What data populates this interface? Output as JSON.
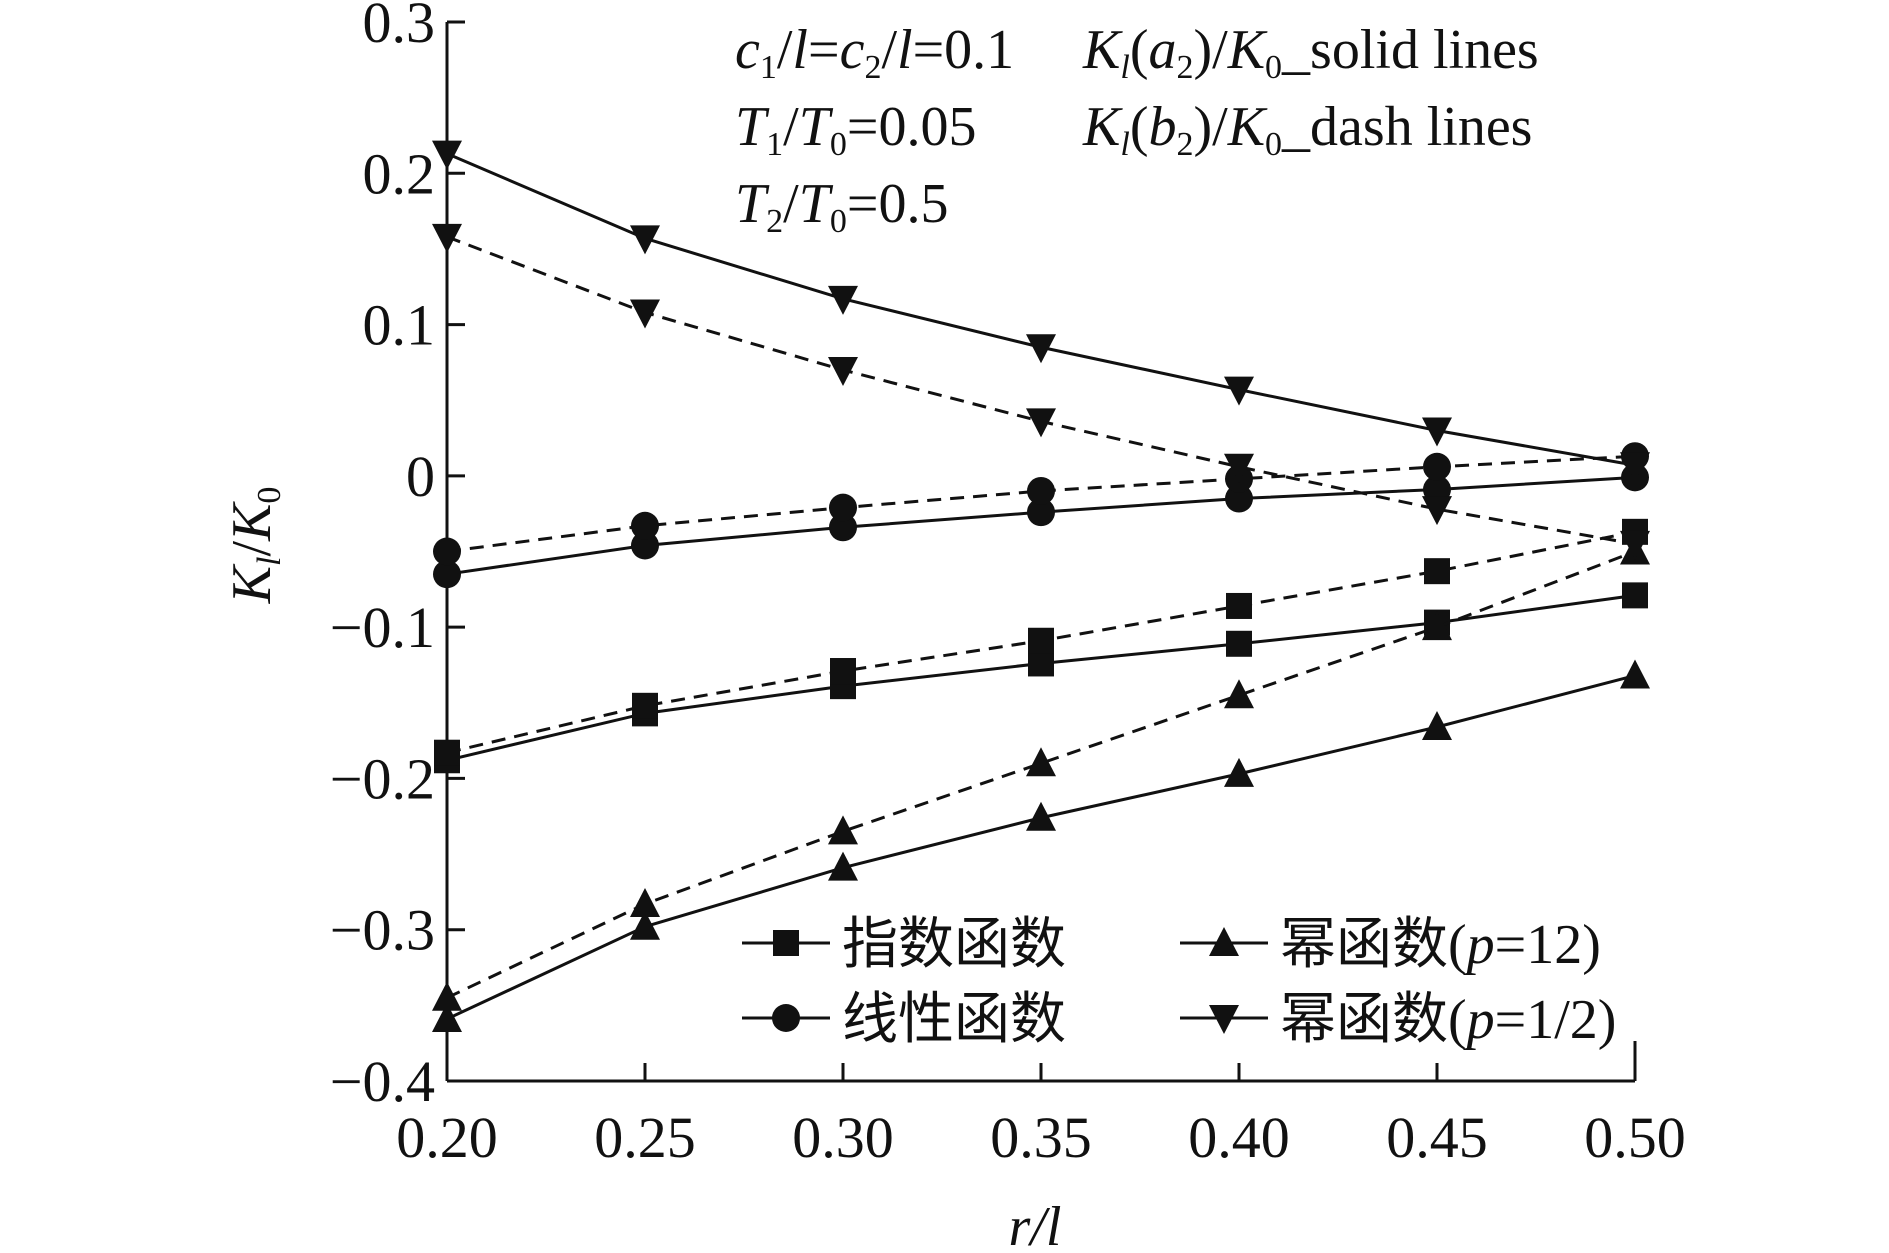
{
  "chart_data": {
    "type": "line",
    "title": "",
    "xlabel": "r/l",
    "ylabel": "K_l/K_0",
    "xlim": [
      0.2,
      0.5
    ],
    "ylim": [
      -0.4,
      0.3
    ],
    "x": [
      0.2,
      0.25,
      0.3,
      0.35,
      0.4,
      0.45,
      0.5
    ],
    "xticks": [
      "0.20",
      "0.25",
      "0.30",
      "0.35",
      "0.40",
      "0.45",
      "0.50"
    ],
    "yticks": [
      {
        "v": 0.3,
        "label": "0.3"
      },
      {
        "v": 0.2,
        "label": "0.2"
      },
      {
        "v": 0.1,
        "label": "0.1"
      },
      {
        "v": 0,
        "label": "0"
      },
      {
        "v": -0.1,
        "label": "−0.1"
      },
      {
        "v": -0.2,
        "label": "−0.2"
      },
      {
        "v": -0.3,
        "label": "−0.3"
      },
      {
        "v": -0.4,
        "label": "−0.4"
      }
    ],
    "grid": false,
    "legend_placement": "bottom-right",
    "series": [
      {
        "name": "指数函数",
        "marker": "square",
        "style": "solid",
        "values": [
          -0.188,
          -0.157,
          -0.139,
          -0.124,
          -0.111,
          -0.097,
          -0.079
        ]
      },
      {
        "name": "指数函数",
        "marker": "square",
        "style": "dash",
        "values": [
          -0.183,
          -0.152,
          -0.129,
          -0.109,
          -0.086,
          -0.063,
          -0.037
        ]
      },
      {
        "name": "线性函数",
        "marker": "circle",
        "style": "solid",
        "values": [
          -0.065,
          -0.046,
          -0.034,
          -0.024,
          -0.015,
          -0.009,
          -0.001
        ]
      },
      {
        "name": "线性函数",
        "marker": "circle",
        "style": "dash",
        "values": [
          -0.05,
          -0.033,
          -0.021,
          -0.01,
          -0.002,
          0.006,
          0.013
        ]
      },
      {
        "name": "幂函数(p=12)",
        "marker": "triangle-up",
        "style": "solid",
        "values": [
          -0.359,
          -0.298,
          -0.259,
          -0.226,
          -0.197,
          -0.166,
          -0.132
        ]
      },
      {
        "name": "幂函数(p=12)",
        "marker": "triangle-up",
        "style": "dash",
        "values": [
          -0.345,
          -0.283,
          -0.235,
          -0.19,
          -0.145,
          -0.1,
          -0.05
        ]
      },
      {
        "name": "幂函数(p=1/2)",
        "marker": "triangle-down",
        "style": "solid",
        "values": [
          0.213,
          0.157,
          0.117,
          0.085,
          0.057,
          0.03,
          0.007
        ]
      },
      {
        "name": "幂函数(p=1/2)",
        "marker": "triangle-down",
        "style": "dash",
        "values": [
          0.158,
          0.108,
          0.07,
          0.036,
          0.006,
          -0.022,
          -0.045
        ]
      }
    ],
    "legend": [
      {
        "label_main": "指数函数",
        "label_p": "",
        "label_rest": "",
        "marker": "square"
      },
      {
        "label_main": "幂函数(",
        "label_p": "p",
        "label_rest": "=12)",
        "marker": "triangle-up"
      },
      {
        "label_main": "线性函数",
        "label_p": "",
        "label_rest": "",
        "marker": "circle"
      },
      {
        "label_main": "幂函数(",
        "label_p": "p",
        "label_rest": "=1/2)",
        "marker": "triangle-down"
      }
    ],
    "annotations": {
      "line1_params": "c1/l=c2/l=0.1",
      "line1_legend": "Kl(a2)/K0_solid lines",
      "line2_params": "T1/T0=0.05",
      "line2_legend": "Kl(b2)/K0_dash lines",
      "line3_params": "T2/T0=0.5"
    }
  }
}
